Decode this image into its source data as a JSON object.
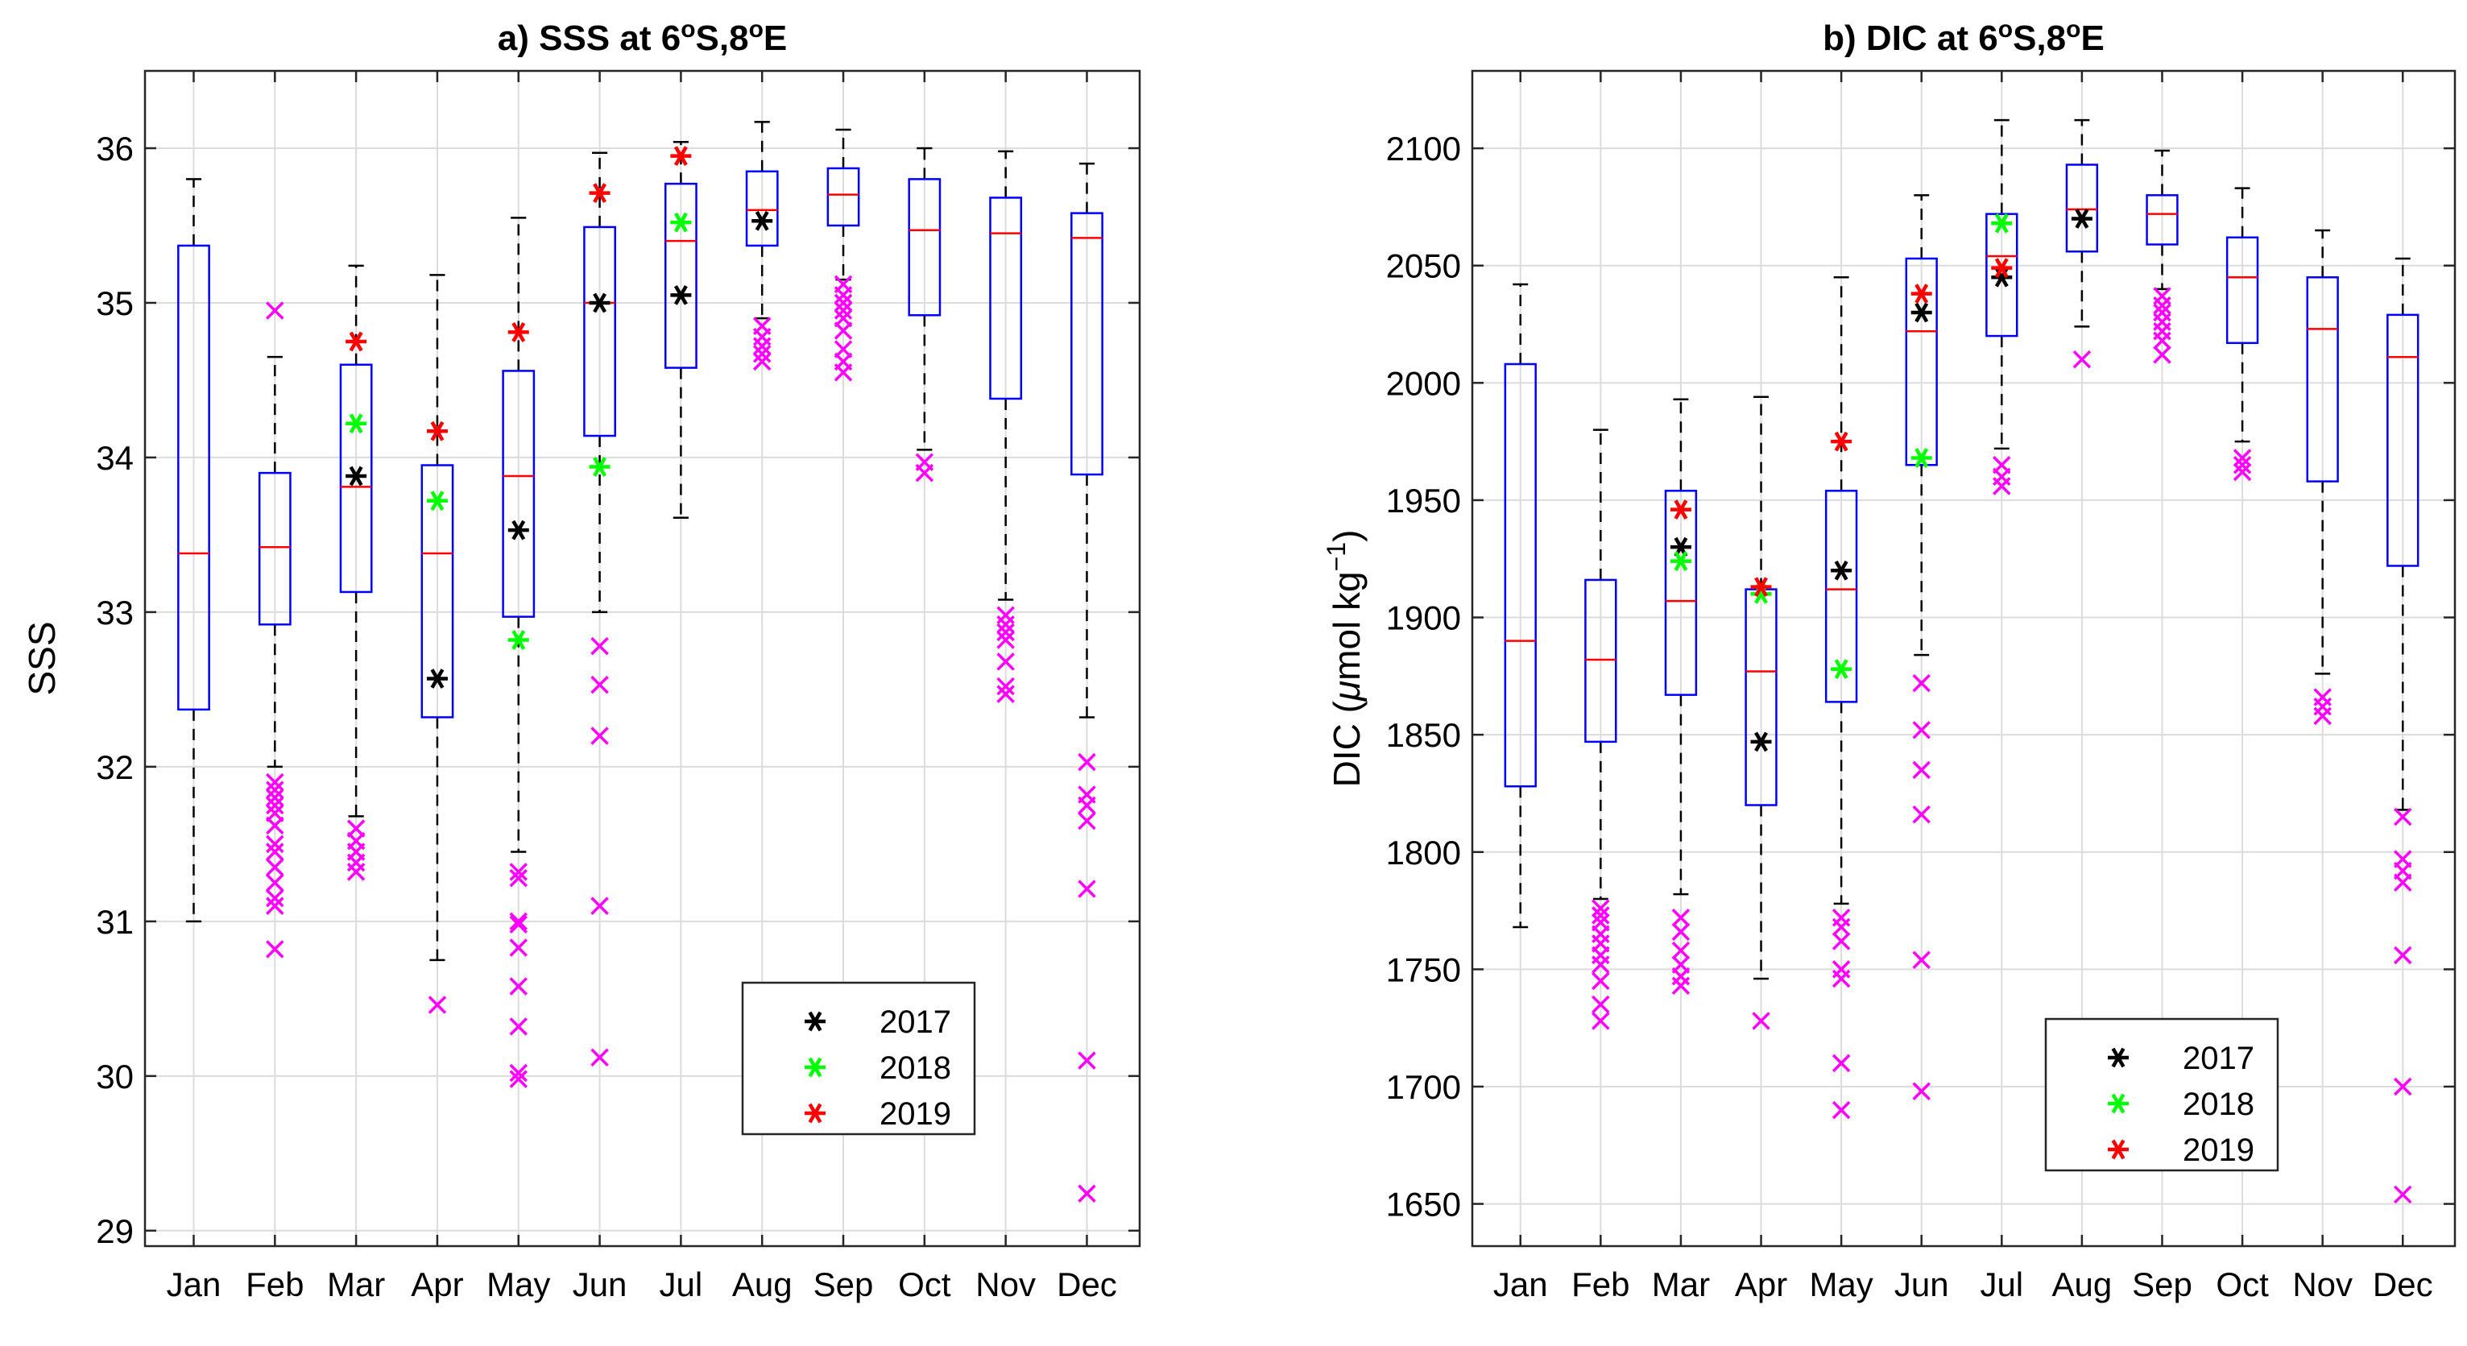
{
  "chart_data": [
    {
      "type": "box",
      "panel": "a",
      "title_parts": [
        "a) SSS at 6",
        "o",
        "S,8",
        "o",
        "E"
      ],
      "ylabel_parts": [
        "SSS"
      ],
      "xlabel": "",
      "categories": [
        "Jan",
        "Feb",
        "Mar",
        "Apr",
        "May",
        "Jun",
        "Jul",
        "Aug",
        "Sep",
        "Oct",
        "Nov",
        "Dec"
      ],
      "ylim": [
        28.9,
        36.5
      ],
      "yticks": [
        "29",
        "30",
        "31",
        "32",
        "33",
        "34",
        "35",
        "36"
      ],
      "grid": true,
      "legend_position": "lower-right",
      "legend": [
        "2017",
        "2018",
        "2019"
      ],
      "boxes": [
        {
          "month": "Jan",
          "lower_whisker": 31.0,
          "q1": 32.37,
          "median": 33.38,
          "q3": 35.37,
          "upper_whisker": 35.8,
          "outliers": []
        },
        {
          "month": "Feb",
          "lower_whisker": 32.0,
          "q1": 32.92,
          "median": 33.42,
          "q3": 33.9,
          "upper_whisker": 34.65,
          "outliers": [
            34.95,
            31.9,
            31.85,
            31.8,
            31.75,
            31.7,
            31.62,
            31.5,
            31.45,
            31.35,
            31.25,
            31.15,
            31.1,
            30.82
          ]
        },
        {
          "month": "Mar",
          "lower_whisker": 31.68,
          "q1": 33.13,
          "median": 33.81,
          "q3": 34.6,
          "upper_whisker": 35.24,
          "outliers": [
            31.6,
            31.52,
            31.45,
            31.38,
            31.32
          ]
        },
        {
          "month": "Apr",
          "lower_whisker": 30.75,
          "q1": 32.32,
          "median": 33.38,
          "q3": 33.95,
          "upper_whisker": 35.18,
          "outliers": [
            30.46
          ]
        },
        {
          "month": "May",
          "lower_whisker": 31.45,
          "q1": 32.97,
          "median": 33.88,
          "q3": 34.56,
          "upper_whisker": 35.55,
          "outliers": [
            31.32,
            31.28,
            31.0,
            30.98,
            30.83,
            30.58,
            30.32,
            30.02,
            29.98
          ]
        },
        {
          "month": "Jun",
          "lower_whisker": 33.0,
          "q1": 34.14,
          "median": 35.0,
          "q3": 35.49,
          "upper_whisker": 35.97,
          "outliers": [
            32.78,
            32.53,
            32.2,
            31.1,
            30.12
          ]
        },
        {
          "month": "Jul",
          "lower_whisker": 33.61,
          "q1": 34.58,
          "median": 35.4,
          "q3": 35.77,
          "upper_whisker": 36.04,
          "outliers": []
        },
        {
          "month": "Aug",
          "lower_whisker": 34.9,
          "q1": 35.37,
          "median": 35.6,
          "q3": 35.85,
          "upper_whisker": 36.17,
          "outliers": [
            34.85,
            34.78,
            34.72,
            34.67,
            34.62
          ]
        },
        {
          "month": "Sep",
          "lower_whisker": 35.15,
          "q1": 35.5,
          "median": 35.7,
          "q3": 35.87,
          "upper_whisker": 36.12,
          "outliers": [
            35.12,
            35.05,
            35.0,
            34.95,
            34.9,
            34.82,
            34.7,
            34.62,
            34.55
          ]
        },
        {
          "month": "Oct",
          "lower_whisker": 34.05,
          "q1": 34.92,
          "median": 35.47,
          "q3": 35.8,
          "upper_whisker": 36.0,
          "outliers": [
            33.97,
            33.9
          ]
        },
        {
          "month": "Nov",
          "lower_whisker": 33.08,
          "q1": 34.38,
          "median": 35.45,
          "q3": 35.68,
          "upper_whisker": 35.98,
          "outliers": [
            32.98,
            32.92,
            32.87,
            32.82,
            32.68,
            32.52,
            32.47
          ]
        },
        {
          "month": "Dec",
          "lower_whisker": 32.32,
          "q1": 33.89,
          "median": 35.42,
          "q3": 35.58,
          "upper_whisker": 35.9,
          "outliers": [
            32.03,
            31.82,
            31.75,
            31.65,
            31.21,
            30.1,
            29.24
          ]
        }
      ],
      "series": [
        {
          "name": "2017",
          "color": "#000000",
          "points": [
            [
              "Mar",
              33.88
            ],
            [
              "Apr",
              32.57
            ],
            [
              "May",
              33.53
            ],
            [
              "Jun",
              35.0
            ],
            [
              "Jul",
              35.05
            ],
            [
              "Aug",
              35.53
            ]
          ]
        },
        {
          "name": "2018",
          "color": "#00ff00",
          "points": [
            [
              "Mar",
              34.22
            ],
            [
              "Apr",
              33.72
            ],
            [
              "May",
              32.82
            ],
            [
              "Jun",
              33.94
            ],
            [
              "Jul",
              35.52
            ]
          ]
        },
        {
          "name": "2019",
          "color": "#ff0000",
          "points": [
            [
              "Mar",
              34.75
            ],
            [
              "Apr",
              34.17
            ],
            [
              "May",
              34.81
            ],
            [
              "Jun",
              35.71
            ],
            [
              "Jul",
              35.95
            ]
          ]
        }
      ]
    },
    {
      "type": "box",
      "panel": "b",
      "title_parts": [
        "b) DIC at 6",
        "o",
        "S,8",
        "o",
        "E"
      ],
      "ylabel_parts": [
        "DIC (",
        "μ",
        "mol kg",
        "−1",
        ")"
      ],
      "xlabel": "",
      "categories": [
        "Jan",
        "Feb",
        "Mar",
        "Apr",
        "May",
        "Jun",
        "Jul",
        "Aug",
        "Sep",
        "Oct",
        "Nov",
        "Dec"
      ],
      "ylim": [
        1632,
        2133
      ],
      "yticks": [
        "1650",
        "1700",
        "1750",
        "1800",
        "1850",
        "1900",
        "1950",
        "2000",
        "2050",
        "2100"
      ],
      "grid": true,
      "legend_position": "lower-right",
      "legend": [
        "2017",
        "2018",
        "2019"
      ],
      "boxes": [
        {
          "month": "Jan",
          "lower_whisker": 1768,
          "q1": 1828,
          "median": 1890,
          "q3": 2008,
          "upper_whisker": 2042,
          "outliers": []
        },
        {
          "month": "Feb",
          "lower_whisker": 1780,
          "q1": 1847,
          "median": 1882,
          "q3": 1916,
          "upper_whisker": 1980,
          "outliers": [
            1776,
            1773,
            1770,
            1765,
            1761,
            1756,
            1752,
            1745,
            1735,
            1728
          ]
        },
        {
          "month": "Mar",
          "lower_whisker": 1782,
          "q1": 1867,
          "median": 1907,
          "q3": 1954,
          "upper_whisker": 1993,
          "outliers": [
            1772,
            1766,
            1758,
            1752,
            1747,
            1743
          ]
        },
        {
          "month": "Apr",
          "lower_whisker": 1746,
          "q1": 1820,
          "median": 1877,
          "q3": 1912,
          "upper_whisker": 1994,
          "outliers": [
            1728
          ]
        },
        {
          "month": "May",
          "lower_whisker": 1778,
          "q1": 1864,
          "median": 1912,
          "q3": 1954,
          "upper_whisker": 2045,
          "outliers": [
            1772,
            1768,
            1762,
            1750,
            1746,
            1710,
            1690
          ]
        },
        {
          "month": "Jun",
          "lower_whisker": 1884,
          "q1": 1965,
          "median": 2022,
          "q3": 2053,
          "upper_whisker": 2080,
          "outliers": [
            1872,
            1852,
            1835,
            1816,
            1754,
            1698
          ]
        },
        {
          "month": "Jul",
          "lower_whisker": 1972,
          "q1": 2020,
          "median": 2054,
          "q3": 2072,
          "upper_whisker": 2112,
          "outliers": [
            1965,
            1960,
            1956
          ]
        },
        {
          "month": "Aug",
          "lower_whisker": 2024,
          "q1": 2056,
          "median": 2074,
          "q3": 2093,
          "upper_whisker": 2112,
          "outliers": [
            2010
          ]
        },
        {
          "month": "Sep",
          "lower_whisker": 2040,
          "q1": 2059,
          "median": 2072,
          "q3": 2080,
          "upper_whisker": 2099,
          "outliers": [
            2037,
            2033,
            2030,
            2026,
            2022,
            2018,
            2012
          ]
        },
        {
          "month": "Oct",
          "lower_whisker": 1975,
          "q1": 2017,
          "median": 2045,
          "q3": 2062,
          "upper_whisker": 2083,
          "outliers": [
            1968,
            1965,
            1962
          ]
        },
        {
          "month": "Nov",
          "lower_whisker": 1876,
          "q1": 1958,
          "median": 2023,
          "q3": 2045,
          "upper_whisker": 2065,
          "outliers": [
            1866,
            1862,
            1858
          ]
        },
        {
          "month": "Dec",
          "lower_whisker": 1818,
          "q1": 1922,
          "median": 2011,
          "q3": 2029,
          "upper_whisker": 2053,
          "outliers": [
            1815,
            1797,
            1792,
            1787,
            1756,
            1700,
            1654
          ]
        }
      ],
      "series": [
        {
          "name": "2017",
          "color": "#000000",
          "points": [
            [
              "Mar",
              1930
            ],
            [
              "Apr",
              1847
            ],
            [
              "May",
              1920
            ],
            [
              "Jun",
              2030
            ],
            [
              "Jul",
              2045
            ],
            [
              "Aug",
              2070
            ]
          ]
        },
        {
          "name": "2018",
          "color": "#00ff00",
          "points": [
            [
              "Mar",
              1924
            ],
            [
              "Apr",
              1910
            ],
            [
              "May",
              1878
            ],
            [
              "Jun",
              1968
            ],
            [
              "Jul",
              2068
            ]
          ]
        },
        {
          "name": "2019",
          "color": "#ff0000",
          "points": [
            [
              "Mar",
              1946
            ],
            [
              "Apr",
              1913
            ],
            [
              "May",
              1975
            ],
            [
              "Jun",
              2038
            ],
            [
              "Jul",
              2049
            ]
          ]
        }
      ]
    }
  ],
  "colors": {
    "box": "#0000ff",
    "median": "#ff0000",
    "whisker": "#000000",
    "outlier": "#ff00ff",
    "grid": "#dcdcdc"
  }
}
